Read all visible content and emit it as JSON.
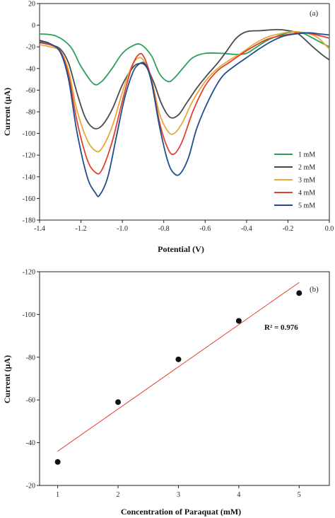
{
  "chart_data": [
    {
      "id": "a",
      "type": "line",
      "panel_label": "(a)",
      "xlabel": "Potential (V)",
      "ylabel": "Current (μA)",
      "xlim": [
        -1.4,
        0.0
      ],
      "ylim": [
        -180,
        20
      ],
      "x_ticks": [
        -1.4,
        -1.2,
        -1.0,
        -0.8,
        -0.6,
        -0.4,
        -0.2,
        0.0
      ],
      "x_tick_labels": [
        "-1.4",
        "-1.2",
        "-1.0",
        "-0.8",
        "-0.6",
        "-0.4",
        "-0.2",
        "0.0"
      ],
      "y_ticks": [
        20,
        0,
        -20,
        -40,
        -60,
        -80,
        -100,
        -120,
        -140,
        -160,
        -180
      ],
      "y_tick_labels": [
        "20",
        "0",
        "-20",
        "-40",
        "-60",
        "-80",
        "-100",
        "-120",
        "-140",
        "-160",
        "-180"
      ],
      "legend_position": "center-right",
      "series": [
        {
          "name": "1 mM",
          "color": "#2ca05a",
          "points": [
            [
              -1.4,
              -8
            ],
            [
              -1.32,
              -10
            ],
            [
              -1.25,
              -20
            ],
            [
              -1.2,
              -38
            ],
            [
              -1.14,
              -54
            ],
            [
              -1.1,
              -52
            ],
            [
              -1.05,
              -40
            ],
            [
              -1.0,
              -26
            ],
            [
              -0.95,
              -19
            ],
            [
              -0.91,
              -18
            ],
            [
              -0.86,
              -28
            ],
            [
              -0.82,
              -45
            ],
            [
              -0.78,
              -52
            ],
            [
              -0.75,
              -49
            ],
            [
              -0.7,
              -38
            ],
            [
              -0.66,
              -30
            ],
            [
              -0.6,
              -26
            ],
            [
              -0.52,
              -26
            ],
            [
              -0.45,
              -27
            ],
            [
              -0.4,
              -26
            ],
            [
              -0.35,
              -20
            ],
            [
              -0.3,
              -14
            ],
            [
              -0.25,
              -10
            ],
            [
              -0.2,
              -7
            ],
            [
              -0.16,
              -6
            ],
            [
              -0.12,
              -8
            ],
            [
              -0.06,
              -14
            ],
            [
              0.0,
              -20
            ]
          ]
        },
        {
          "name": "2 mM",
          "color": "#4a4a4a",
          "points": [
            [
              -1.4,
              -16
            ],
            [
              -1.35,
              -18
            ],
            [
              -1.3,
              -22
            ],
            [
              -1.26,
              -35
            ],
            [
              -1.22,
              -62
            ],
            [
              -1.18,
              -85
            ],
            [
              -1.14,
              -95
            ],
            [
              -1.1,
              -93
            ],
            [
              -1.05,
              -78
            ],
            [
              -1.0,
              -55
            ],
            [
              -0.96,
              -42
            ],
            [
              -0.93,
              -36
            ],
            [
              -0.89,
              -37
            ],
            [
              -0.85,
              -52
            ],
            [
              -0.81,
              -73
            ],
            [
              -0.77,
              -85
            ],
            [
              -0.73,
              -83
            ],
            [
              -0.69,
              -72
            ],
            [
              -0.64,
              -58
            ],
            [
              -0.59,
              -46
            ],
            [
              -0.54,
              -35
            ],
            [
              -0.5,
              -25
            ],
            [
              -0.45,
              -12
            ],
            [
              -0.4,
              -6
            ],
            [
              -0.33,
              -5
            ],
            [
              -0.25,
              -4
            ],
            [
              -0.2,
              -5
            ],
            [
              -0.15,
              -8
            ],
            [
              -0.08,
              -20
            ],
            [
              -0.03,
              -28
            ],
            [
              0.0,
              -32
            ]
          ]
        },
        {
          "name": "3 mM",
          "color": "#e8a838",
          "points": [
            [
              -1.4,
              -18
            ],
            [
              -1.35,
              -20
            ],
            [
              -1.3,
              -24
            ],
            [
              -1.26,
              -42
            ],
            [
              -1.22,
              -78
            ],
            [
              -1.17,
              -106
            ],
            [
              -1.13,
              -116
            ],
            [
              -1.1,
              -114
            ],
            [
              -1.05,
              -94
            ],
            [
              -1.0,
              -62
            ],
            [
              -0.96,
              -40
            ],
            [
              -0.93,
              -31
            ],
            [
              -0.9,
              -32
            ],
            [
              -0.86,
              -50
            ],
            [
              -0.82,
              -82
            ],
            [
              -0.78,
              -98
            ],
            [
              -0.75,
              -100
            ],
            [
              -0.71,
              -90
            ],
            [
              -0.66,
              -70
            ],
            [
              -0.6,
              -52
            ],
            [
              -0.54,
              -40
            ],
            [
              -0.48,
              -32
            ],
            [
              -0.42,
              -25
            ],
            [
              -0.36,
              -17
            ],
            [
              -0.3,
              -11
            ],
            [
              -0.24,
              -8
            ],
            [
              -0.18,
              -6
            ],
            [
              -0.12,
              -7
            ],
            [
              -0.06,
              -11
            ],
            [
              0.0,
              -22
            ]
          ]
        },
        {
          "name": "4 mM",
          "color": "#e04030",
          "points": [
            [
              -1.4,
              -15
            ],
            [
              -1.35,
              -18
            ],
            [
              -1.3,
              -24
            ],
            [
              -1.26,
              -46
            ],
            [
              -1.22,
              -88
            ],
            [
              -1.17,
              -124
            ],
            [
              -1.13,
              -136
            ],
            [
              -1.1,
              -134
            ],
            [
              -1.05,
              -108
            ],
            [
              -1.0,
              -70
            ],
            [
              -0.96,
              -42
            ],
            [
              -0.93,
              -29
            ],
            [
              -0.9,
              -28
            ],
            [
              -0.86,
              -50
            ],
            [
              -0.82,
              -90
            ],
            [
              -0.78,
              -114
            ],
            [
              -0.75,
              -119
            ],
            [
              -0.71,
              -107
            ],
            [
              -0.66,
              -80
            ],
            [
              -0.6,
              -56
            ],
            [
              -0.54,
              -42
            ],
            [
              -0.48,
              -34
            ],
            [
              -0.42,
              -26
            ],
            [
              -0.36,
              -19
            ],
            [
              -0.3,
              -13
            ],
            [
              -0.24,
              -10
            ],
            [
              -0.18,
              -8
            ],
            [
              -0.12,
              -7
            ],
            [
              -0.06,
              -9
            ],
            [
              0.0,
              -12
            ]
          ]
        },
        {
          "name": "5 mM",
          "color": "#1f4e8c",
          "points": [
            [
              -1.4,
              -14
            ],
            [
              -1.35,
              -17
            ],
            [
              -1.3,
              -25
            ],
            [
              -1.26,
              -50
            ],
            [
              -1.22,
              -98
            ],
            [
              -1.17,
              -140
            ],
            [
              -1.13,
              -155
            ],
            [
              -1.11,
              -157
            ],
            [
              -1.07,
              -140
            ],
            [
              -1.03,
              -104
            ],
            [
              -0.99,
              -68
            ],
            [
              -0.95,
              -44
            ],
            [
              -0.92,
              -36
            ],
            [
              -0.89,
              -36
            ],
            [
              -0.86,
              -52
            ],
            [
              -0.82,
              -94
            ],
            [
              -0.78,
              -126
            ],
            [
              -0.75,
              -137
            ],
            [
              -0.72,
              -137
            ],
            [
              -0.68,
              -122
            ],
            [
              -0.64,
              -95
            ],
            [
              -0.58,
              -68
            ],
            [
              -0.52,
              -48
            ],
            [
              -0.46,
              -38
            ],
            [
              -0.4,
              -30
            ],
            [
              -0.34,
              -22
            ],
            [
              -0.28,
              -15
            ],
            [
              -0.22,
              -10
            ],
            [
              -0.16,
              -8
            ],
            [
              -0.1,
              -7
            ],
            [
              -0.05,
              -8
            ],
            [
              0.0,
              -9
            ]
          ]
        }
      ]
    },
    {
      "id": "b",
      "type": "scatter",
      "panel_label": "(b)",
      "xlabel": "Concentration of Paraquat (mM)",
      "ylabel": "Current (μA)",
      "xlim": [
        0.7,
        5.5
      ],
      "ylim": [
        -20,
        -120
      ],
      "x_ticks": [
        1,
        2,
        3,
        4,
        5
      ],
      "x_tick_labels": [
        "1",
        "2",
        "3",
        "4",
        "5"
      ],
      "y_ticks": [
        -20,
        -40,
        -60,
        -80,
        -100,
        -120
      ],
      "y_tick_labels": [
        "-20",
        "-40",
        "-60",
        "-80",
        "-100",
        "-120"
      ],
      "x": [
        1,
        2,
        3,
        4,
        5
      ],
      "y": [
        -31,
        -59,
        -79,
        -97,
        -110
      ],
      "fit_line": {
        "x": [
          1,
          5
        ],
        "y": [
          -36,
          -115
        ],
        "color": "#e04030"
      },
      "point_color": "#111111",
      "annotation": "R² = 0.976"
    }
  ]
}
